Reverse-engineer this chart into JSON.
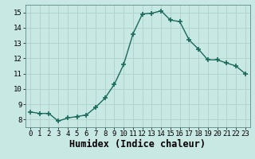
{
  "x": [
    0,
    1,
    2,
    3,
    4,
    5,
    6,
    7,
    8,
    9,
    10,
    11,
    12,
    13,
    14,
    15,
    16,
    17,
    18,
    19,
    20,
    21,
    22,
    23
  ],
  "y": [
    8.5,
    8.4,
    8.4,
    7.9,
    8.1,
    8.2,
    8.3,
    8.8,
    9.4,
    10.3,
    11.6,
    13.6,
    14.9,
    14.95,
    15.1,
    14.5,
    14.4,
    13.2,
    12.6,
    11.9,
    11.9,
    11.7,
    11.5,
    11.0
  ],
  "line_color": "#1a6b5a",
  "marker": "+",
  "marker_size": 4,
  "marker_lw": 1.2,
  "bg_color": "#c8e8e4",
  "grid_color": "#b0d0cc",
  "xlabel": "Humidex (Indice chaleur)",
  "xlim": [
    -0.5,
    23.5
  ],
  "ylim": [
    7.5,
    15.5
  ],
  "yticks": [
    8,
    9,
    10,
    11,
    12,
    13,
    14,
    15
  ],
  "xticks": [
    0,
    1,
    2,
    3,
    4,
    5,
    6,
    7,
    8,
    9,
    10,
    11,
    12,
    13,
    14,
    15,
    16,
    17,
    18,
    19,
    20,
    21,
    22,
    23
  ],
  "tick_fontsize": 6.5,
  "xlabel_fontsize": 8.5,
  "line_width": 1.0
}
